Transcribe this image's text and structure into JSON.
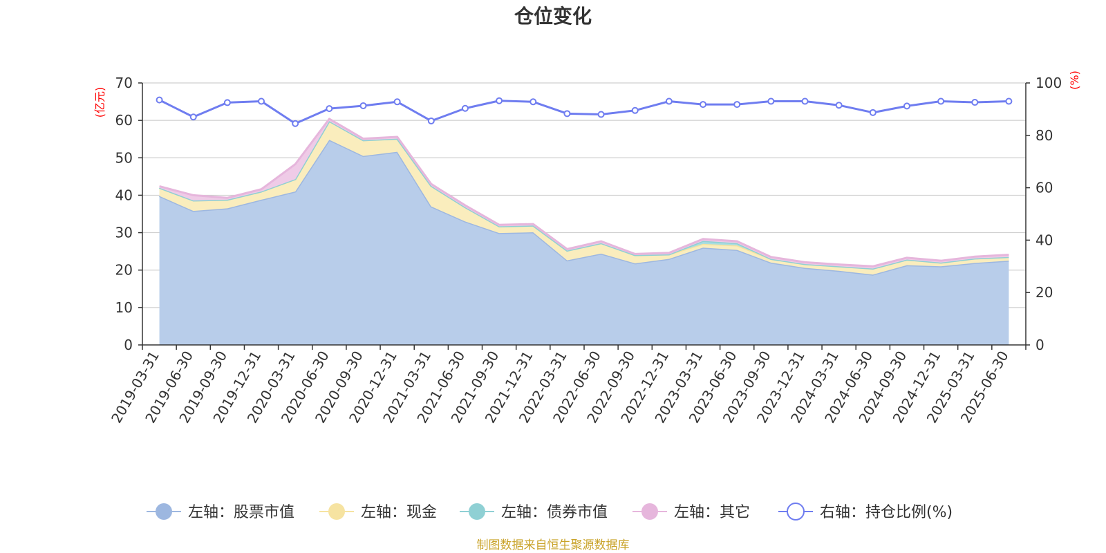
{
  "chart_data": {
    "type": "area",
    "title": "仓位变化",
    "left_axis_name": "(亿元)",
    "right_axis_name": "(%)",
    "left_ylim": [
      0,
      70
    ],
    "left_yticks": [
      0,
      10,
      20,
      30,
      40,
      50,
      60,
      70
    ],
    "right_ylim": [
      0,
      100
    ],
    "right_yticks": [
      0,
      20,
      40,
      60,
      80,
      100
    ],
    "grid": true,
    "legend_position": "bottom",
    "categories": [
      "2019-03-31",
      "2019-06-30",
      "2019-09-30",
      "2019-12-31",
      "2020-03-31",
      "2020-06-30",
      "2020-09-30",
      "2020-12-31",
      "2021-03-31",
      "2021-06-30",
      "2021-09-30",
      "2021-12-31",
      "2022-03-31",
      "2022-06-30",
      "2022-09-30",
      "2022-12-31",
      "2023-03-31",
      "2023-06-30",
      "2023-09-30",
      "2023-12-31",
      "2024-03-31",
      "2024-06-30",
      "2024-09-30",
      "2024-12-31",
      "2025-03-31",
      "2025-06-30"
    ],
    "series": [
      {
        "name": "左轴：股票市值",
        "axis": "left",
        "kind": "area",
        "color": "#9db7e0",
        "fill": "#b8cdea",
        "values": [
          39.8,
          35.8,
          36.5,
          38.8,
          41.0,
          54.8,
          50.5,
          51.6,
          37.0,
          33.0,
          29.9,
          30.1,
          22.6,
          24.4,
          21.8,
          23.0,
          26.0,
          25.4,
          22.0,
          20.6,
          19.8,
          18.8,
          21.3,
          21.0,
          21.9,
          22.5
        ]
      },
      {
        "name": "左轴：现金",
        "axis": "left",
        "kind": "area",
        "color": "#f6e3a1",
        "fill": "#faedbd",
        "values": [
          2.2,
          2.8,
          2.3,
          2.2,
          3.3,
          5.0,
          4.2,
          3.5,
          5.5,
          3.8,
          1.8,
          1.8,
          2.6,
          2.8,
          2.2,
          1.2,
          1.0,
          1.2,
          1.0,
          1.0,
          1.2,
          1.6,
          1.5,
          1.0,
          1.2,
          1.0
        ]
      },
      {
        "name": "左轴：债券市值",
        "axis": "left",
        "kind": "area",
        "color": "#8fd0d4",
        "fill": "#a9dde0",
        "values": [
          0,
          0,
          0,
          0,
          0,
          0,
          0,
          0,
          0,
          0,
          0,
          0,
          0,
          0,
          0,
          0,
          0.8,
          0.6,
          0,
          0,
          0,
          0,
          0,
          0,
          0,
          0
        ]
      },
      {
        "name": "左轴：其它",
        "axis": "left",
        "kind": "area",
        "color": "#e6b6dc",
        "fill": "#efcbe7",
        "values": [
          0.4,
          1.4,
          0.5,
          0.6,
          4.0,
          0.6,
          0.4,
          0.5,
          0.5,
          0.5,
          0.4,
          0.4,
          0.4,
          0.5,
          0.3,
          0.4,
          0.5,
          0.5,
          0.5,
          0.5,
          0.5,
          0.6,
          0.5,
          0.5,
          0.5,
          0.6
        ]
      },
      {
        "name": "右轴：持仓比例(%)",
        "axis": "right",
        "kind": "line",
        "color": "#6f7df0",
        "values": [
          93.5,
          87.0,
          92.5,
          93.0,
          84.5,
          90.2,
          91.3,
          92.8,
          85.5,
          90.3,
          93.2,
          92.8,
          88.3,
          88.0,
          89.5,
          93.0,
          91.8,
          91.8,
          93.0,
          93.0,
          91.5,
          88.7,
          91.2,
          93.0,
          92.6,
          93.0
        ]
      }
    ]
  },
  "source_note": "制图数据来自恒生聚源数据库"
}
